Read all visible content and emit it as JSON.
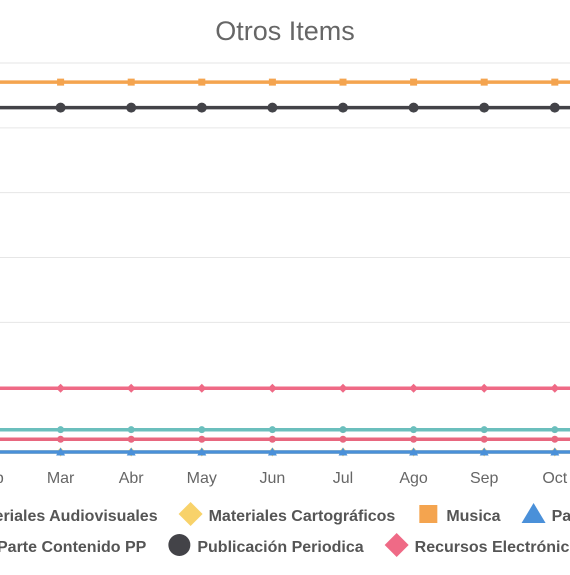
{
  "chart_data": {
    "type": "line",
    "title": "Otros Items",
    "xlabel": "",
    "ylabel": "",
    "categories": [
      "Feb",
      "Mar",
      "Abr",
      "May",
      "Jun",
      "Jul",
      "Ago",
      "Sep",
      "Oct"
    ],
    "ylim": [
      0,
      610
    ],
    "grid": true,
    "legend_position": "bottom",
    "series": [
      {
        "name": "Materiales Audiovisuales",
        "color": "#6bbfbd",
        "marker": "circle",
        "values": [
          35,
          35,
          35,
          35,
          35,
          35,
          35,
          35,
          35
        ]
      },
      {
        "name": "Materiales Cartográficos",
        "color": "#f8d26a",
        "marker": "diamond",
        "values": [
          0,
          0,
          0,
          0,
          0,
          0,
          0,
          0,
          0
        ]
      },
      {
        "name": "Musica",
        "color": "#f4a44f",
        "marker": "square",
        "values": [
          580,
          580,
          580,
          580,
          580,
          580,
          580,
          580,
          580
        ]
      },
      {
        "name": "Parte Componente",
        "color": "#4a90d9",
        "marker": "triangle",
        "values": [
          0,
          0,
          0,
          0,
          0,
          0,
          0,
          0,
          0
        ]
      },
      {
        "name": "Parte Contenido PP",
        "color": "#e8677f",
        "marker": "circle",
        "values": [
          20,
          20,
          20,
          20,
          20,
          20,
          20,
          20,
          20
        ]
      },
      {
        "name": "Publicación Periodica",
        "color": "#434348",
        "marker": "circle",
        "values": [
          540,
          540,
          540,
          540,
          540,
          540,
          540,
          540,
          540
        ]
      },
      {
        "name": "Recursos Electrónicos",
        "color": "#ef6a86",
        "marker": "diamond",
        "values": [
          100,
          100,
          100,
          100,
          100,
          100,
          100,
          100,
          100
        ]
      }
    ]
  }
}
